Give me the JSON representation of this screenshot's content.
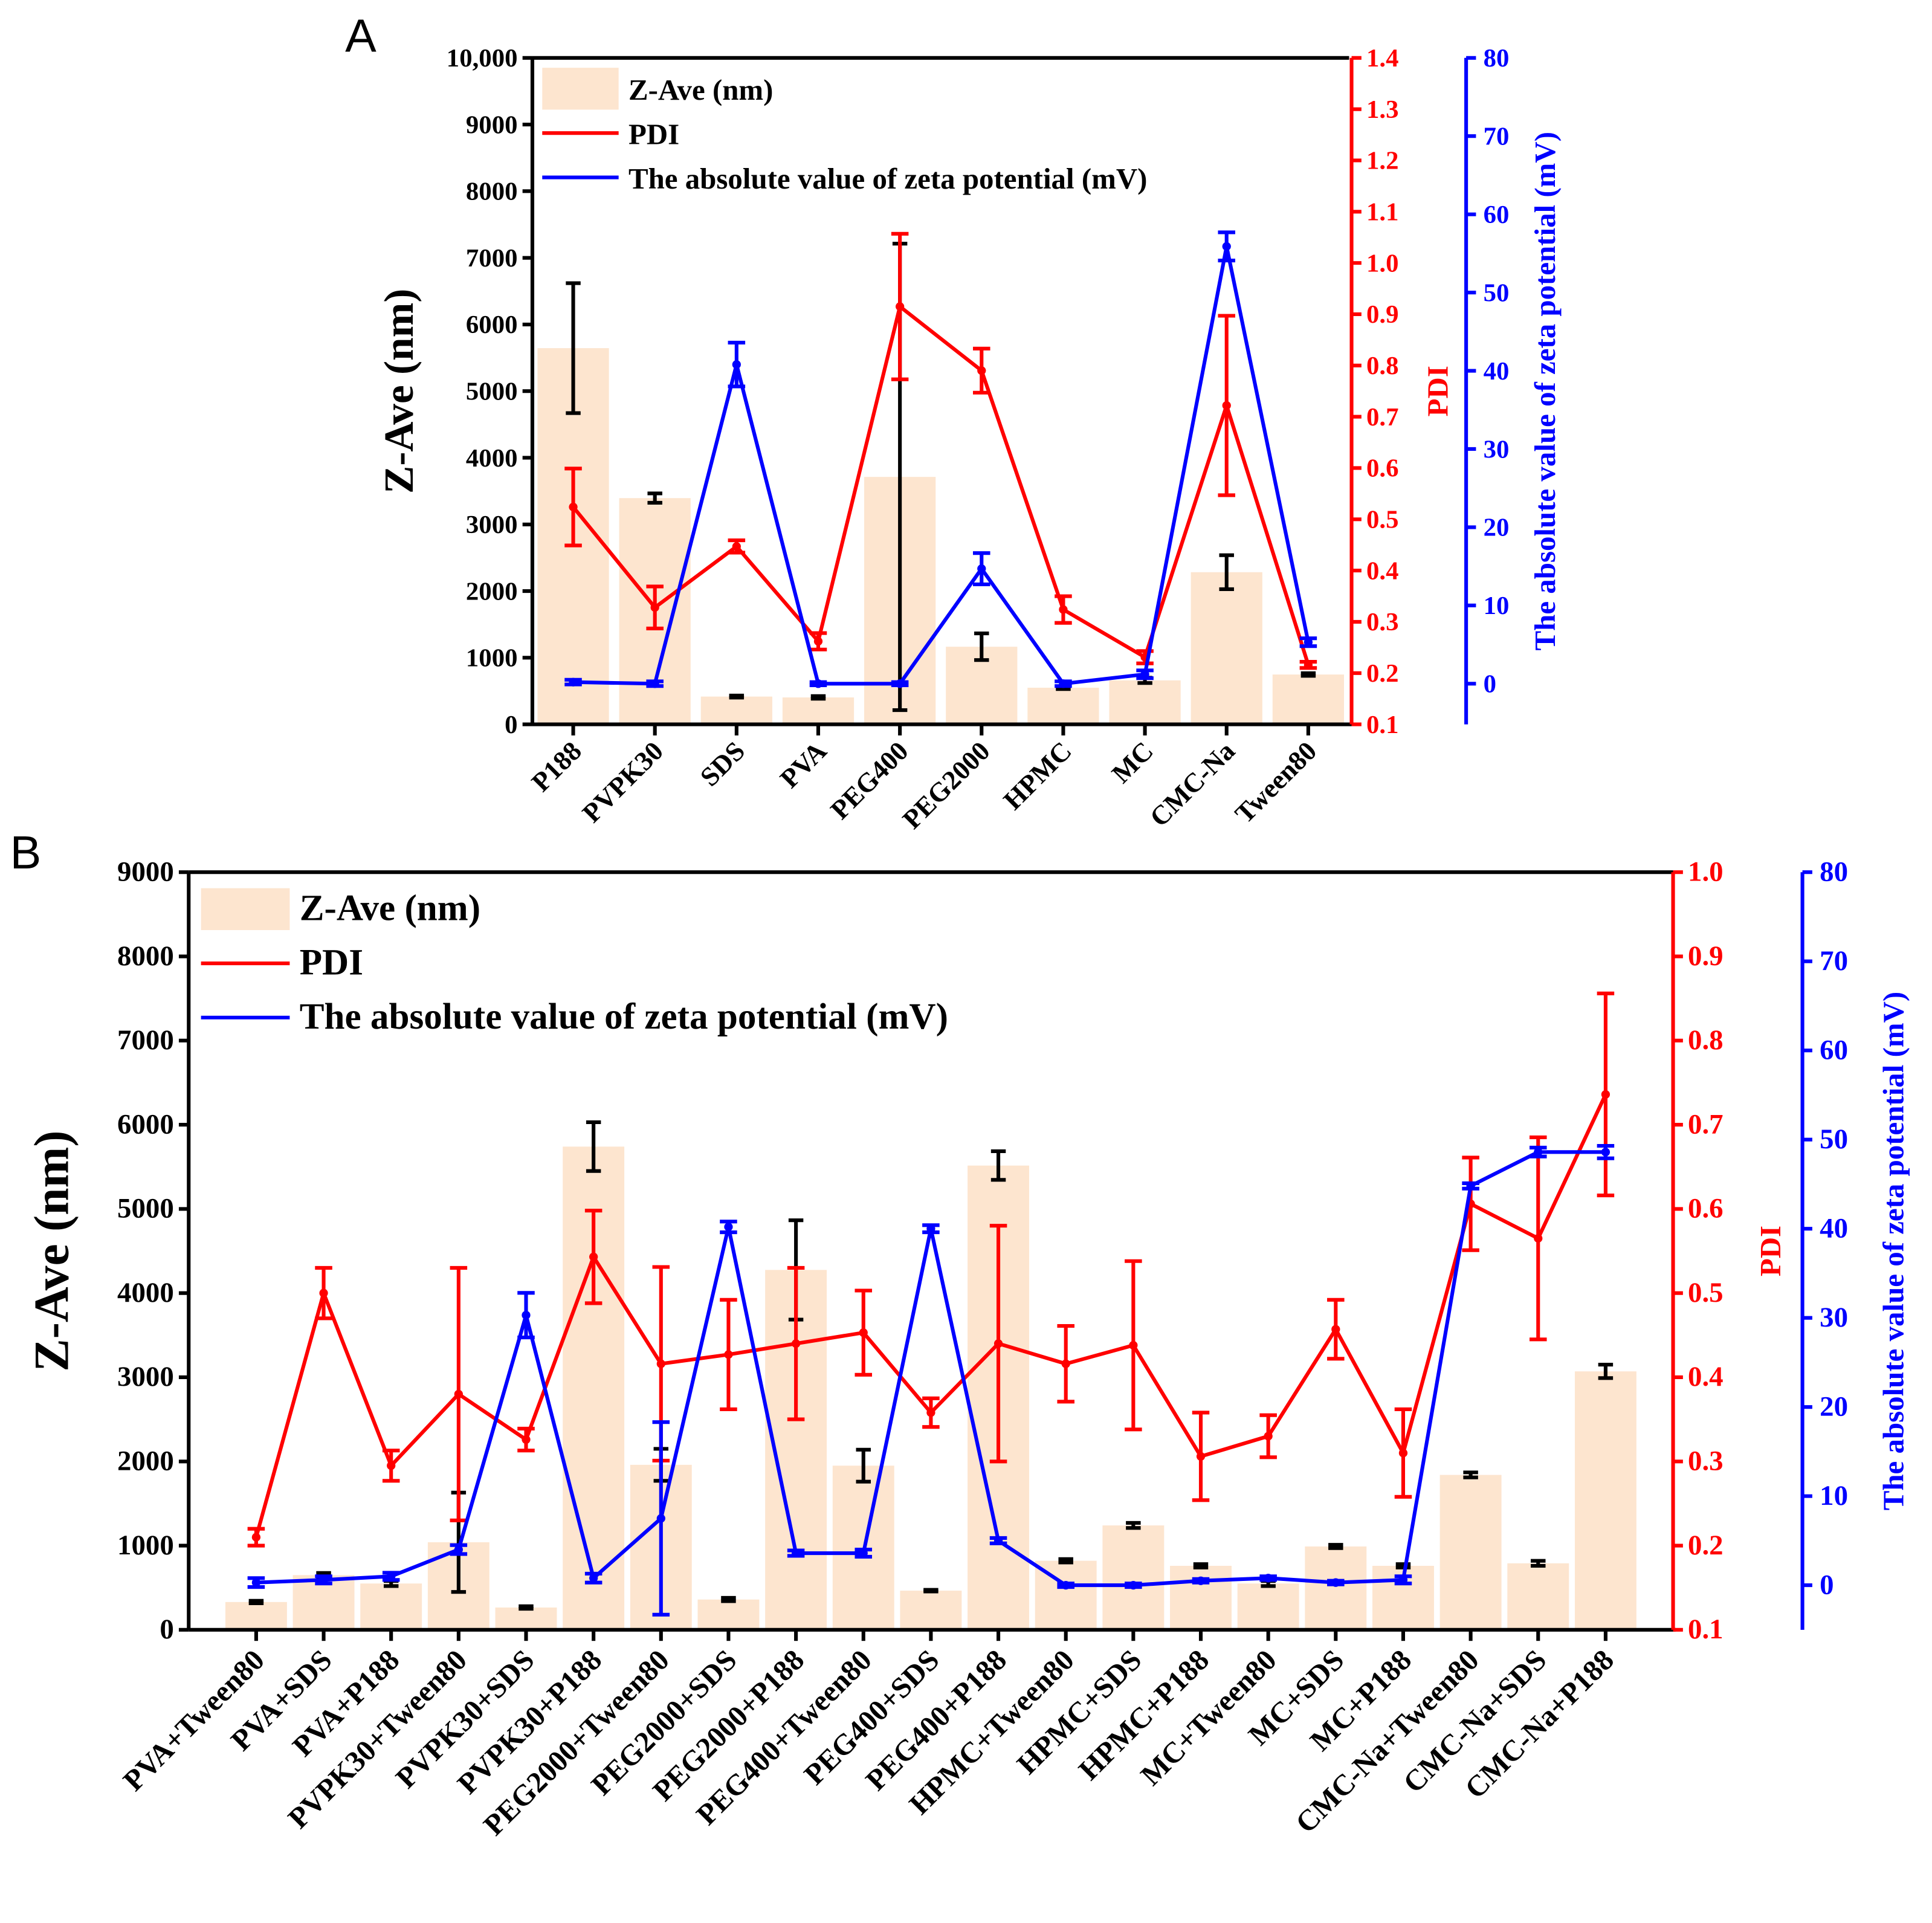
{
  "chart_data": [
    {
      "type": "bar",
      "panel_label": "A",
      "categories": [
        "P188",
        "PVPK30",
        "SDS",
        "PVA",
        "PEG400",
        "PEG2000",
        "HPMC",
        "MC",
        "CMC-Na",
        "Tween80"
      ],
      "ylabel": "Z-Ave (nm)",
      "y2label": "PDI",
      "y3label": "The absolute value of zeta potential (mV)",
      "ylim": [
        0,
        10000
      ],
      "y2lim": [
        0.1,
        1.4
      ],
      "y3lim": [
        -5.2,
        80
      ],
      "yticks": [
        "0",
        "1000",
        "2000",
        "3000",
        "4000",
        "5000",
        "6000",
        "7000",
        "8000",
        "9000",
        "10,000"
      ],
      "y2ticks": [
        "0.1",
        "0.2",
        "0.3",
        "0.4",
        "0.5",
        "0.6",
        "0.7",
        "0.8",
        "0.9",
        "1.0",
        "1.1",
        "1.2",
        "1.3",
        "1.4"
      ],
      "y3ticks": [
        "0",
        "10",
        "20",
        "30",
        "40",
        "50",
        "60",
        "70",
        "80"
      ],
      "legend": [
        "Z-Ave (nm)",
        "PDI",
        "The absolute value of zeta potential (mV)"
      ],
      "legend_position": "top-left",
      "series": [
        {
          "name": "Z-Ave (nm)",
          "kind": "bar",
          "axis": "y",
          "color": "#fde5cf",
          "values": [
            5645,
            3395,
            417,
            404,
            3713,
            1165,
            550,
            660,
            2283,
            748
          ],
          "errors": [
            975,
            70,
            15,
            20,
            3500,
            200,
            20,
            40,
            255,
            20
          ]
        },
        {
          "name": "PDI",
          "kind": "line",
          "axis": "y2",
          "color": "#ff0000",
          "values": [
            0.524,
            0.328,
            0.447,
            0.262,
            0.915,
            0.79,
            0.324,
            0.231,
            0.722,
            0.216
          ],
          "errors": [
            0.075,
            0.041,
            0.012,
            0.016,
            0.142,
            0.043,
            0.026,
            0.012,
            0.175,
            0.006
          ]
        },
        {
          "name": "The absolute value of zeta potential (mV)",
          "kind": "line",
          "axis": "y3",
          "color": "#0000ff",
          "values": [
            0.2,
            0,
            40.8,
            0,
            0,
            14.7,
            0,
            1.2,
            55.9,
            5.3
          ],
          "errors": [
            0.3,
            0.3,
            2.8,
            0.2,
            0.2,
            2.0,
            0.3,
            0.5,
            1.8,
            0.5
          ]
        }
      ]
    },
    {
      "type": "bar",
      "panel_label": "B",
      "categories": [
        "PVA+Tween80",
        "PVA+SDS",
        "PVA+P188",
        "PVPK30+Tween80",
        "PVPK30+SDS",
        "PVPK30+P188",
        "PEG2000+Tween80",
        "PEG2000+SDS",
        "PEG2000+P188",
        "PEG400+Tween80",
        "PEG400+SDS",
        "PEG400+P188",
        "HPMC+Tween80",
        "HPMC+SDS",
        "HPMC+P188",
        "MC+Tween80",
        "MC+SDS",
        "MC+P188",
        "CMC-Na+Tween80",
        "CMC-Na+SDS",
        "CMC-Na+P188"
      ],
      "ylabel": "Z-Ave (nm)",
      "y2label": "PDI",
      "y3label": "The absolute value of zeta potential (mV)",
      "ylim": [
        0,
        9000
      ],
      "y2lim": [
        0.1,
        1.0
      ],
      "y3lim": [
        -5,
        80
      ],
      "yticks": [
        "0",
        "1000",
        "2000",
        "3000",
        "4000",
        "5000",
        "6000",
        "7000",
        "8000",
        "9000"
      ],
      "y2ticks": [
        "0.1",
        "0.2",
        "0.3",
        "0.4",
        "0.5",
        "0.6",
        "0.7",
        "0.8",
        "0.9",
        "1.0"
      ],
      "y3ticks": [
        "0",
        "10",
        "20",
        "30",
        "40",
        "50",
        "60",
        "70",
        "80"
      ],
      "legend": [
        "Z-Ave (nm)",
        "PDI",
        "The absolute value of zeta potential (mV)"
      ],
      "legend_position": "top-left",
      "series": [
        {
          "name": "Z-Ave (nm)",
          "kind": "bar",
          "axis": "y",
          "color": "#fde5cf",
          "values": [
            330,
            650,
            550,
            1040,
            265,
            5740,
            1960,
            360,
            4275,
            1950,
            465,
            5515,
            820,
            1240,
            760,
            550,
            990,
            760,
            1840,
            790,
            3070
          ],
          "errors": [
            15,
            25,
            30,
            590,
            15,
            290,
            190,
            20,
            590,
            190,
            10,
            170,
            20,
            30,
            20,
            30,
            20,
            20,
            30,
            30,
            80
          ]
        },
        {
          "name": "PDI",
          "kind": "line",
          "axis": "y2",
          "color": "#ff0000",
          "values": [
            0.21,
            0.5,
            0.295,
            0.38,
            0.326,
            0.543,
            0.416,
            0.427,
            0.44,
            0.453,
            0.358,
            0.44,
            0.416,
            0.438,
            0.306,
            0.33,
            0.457,
            0.31,
            0.606,
            0.565,
            0.736
          ],
          "errors": [
            0.01,
            0.03,
            0.018,
            0.15,
            0.013,
            0.055,
            0.115,
            0.065,
            0.09,
            0.05,
            0.017,
            0.14,
            0.045,
            0.1,
            0.052,
            0.025,
            0.035,
            0.052,
            0.055,
            0.12,
            0.12
          ]
        },
        {
          "name": "The absolute value of zeta potential (mV)",
          "kind": "line",
          "axis": "y3",
          "color": "#0000ff",
          "values": [
            0.3,
            0.6,
            1.0,
            4.0,
            30.3,
            0.8,
            7.5,
            40.2,
            3.6,
            3.6,
            40.0,
            5.0,
            0,
            0,
            0.5,
            0.8,
            0.3,
            0.6,
            44.8,
            48.6,
            48.6
          ],
          "errors": [
            0.5,
            0.4,
            0.4,
            0.5,
            2.5,
            0.5,
            10.8,
            0.6,
            0.3,
            0.4,
            0.4,
            0.3,
            0.2,
            0.2,
            0.2,
            0.2,
            0.2,
            0.4,
            0.3,
            0.5,
            0.7
          ]
        }
      ]
    }
  ]
}
